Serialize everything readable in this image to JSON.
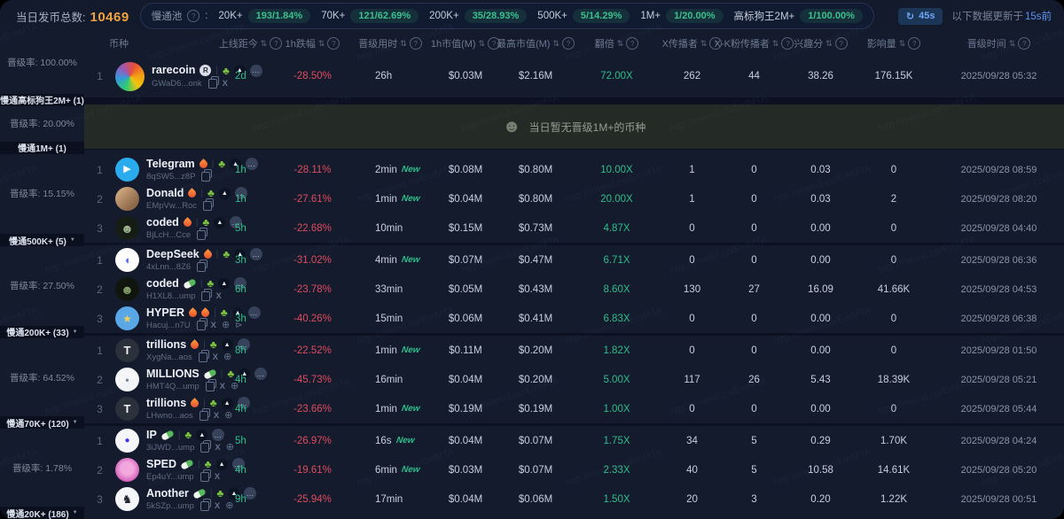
{
  "topbar": {
    "total_label": "当日发币总数:",
    "total_value": "10469",
    "pool_label": "慢通池",
    "pool_colon": ":",
    "pool_stats": [
      {
        "label": "20K+",
        "value": "193/1.84%"
      },
      {
        "label": "70K+",
        "value": "121/62.69%"
      },
      {
        "label": "200K+",
        "value": "35/28.93%"
      },
      {
        "label": "500K+",
        "value": "5/14.29%"
      },
      {
        "label": "1M+",
        "value": "1/20.00%"
      },
      {
        "label": "高标狗王2M+",
        "value": "1/100.00%"
      }
    ],
    "refresh_label": "45s",
    "update_prefix": "以下数据更新于",
    "update_time": "15s前"
  },
  "watermark": "http://memd.co/EmMTA",
  "icons": {
    "refresh": "↻",
    "sort": "⇅",
    "info": "?",
    "caret": "▼",
    "seedling": "♣",
    "warning-triangle": "▲",
    "more": "…",
    "x": "X",
    "globe": "⊕",
    "telegram": "⊳",
    "face": "☻"
  },
  "colors": {
    "green": "#2fbe8b",
    "red": "#e04b5e",
    "orange": "#efa23f",
    "blue": "#5d93f0"
  },
  "sidebar": {
    "rate_label": "晋级率:",
    "sections": [
      {
        "key": "2m",
        "rate": "100.00%",
        "band": "慢通高标狗王2M+",
        "count": "1",
        "caret": false
      },
      {
        "key": "1m",
        "rate": "20.00%",
        "band": "慢通1M+",
        "count": "1",
        "caret": false
      },
      {
        "key": "500k",
        "rate": "15.15%",
        "band": "慢通500K+",
        "count": "5",
        "caret": true
      },
      {
        "key": "200k",
        "rate": "27.50%",
        "band": "慢通200K+",
        "count": "33",
        "caret": true
      },
      {
        "key": "70k",
        "rate": "64.52%",
        "band": "慢通70K+",
        "count": "120",
        "caret": true
      },
      {
        "key": "20k",
        "rate": "1.78%",
        "band": "慢通20K+",
        "count": "186",
        "caret": true
      }
    ]
  },
  "table": {
    "new_label": "New",
    "headers": [
      {
        "key": "coin",
        "label": "币种",
        "sort": false,
        "info": false
      },
      {
        "key": "age",
        "label": "上线距今",
        "sort": true,
        "info": true
      },
      {
        "key": "change-1h",
        "label": "1h跌幅",
        "sort": true,
        "info": true
      },
      {
        "key": "promote-duration",
        "label": "晋级用时",
        "sort": true,
        "info": true
      },
      {
        "key": "mcap-1h",
        "label": "1h市值(M)",
        "sort": true,
        "info": true
      },
      {
        "key": "mcap-high",
        "label": "最高市值(M)",
        "sort": true,
        "info": true
      },
      {
        "key": "multiple",
        "label": "翻倍",
        "sort": true,
        "info": true
      },
      {
        "key": "x-spreaders",
        "label": "X传播者",
        "sort": true,
        "info": true
      },
      {
        "key": "xk-spreaders",
        "label": "X-K粉传播者",
        "sort": true,
        "info": true
      },
      {
        "key": "interest",
        "label": "兴趣分",
        "sort": true,
        "info": true
      },
      {
        "key": "influence",
        "label": "影响量",
        "sort": true,
        "info": true
      },
      {
        "key": "promote-time",
        "label": "晋级时间",
        "sort": true,
        "info": true
      }
    ],
    "sections": [
      {
        "key": "2m",
        "rows": [
          {
            "rank": "1",
            "name": "rarecoin",
            "badge": "reg",
            "name_flame": false,
            "avatar": {
              "bg": "conic-gradient(from 20deg, #e74c3c, #f39c12, #f1c40f, #2ecc71, #3498db, #9b59b6, #e74c3c)",
              "glyph": "",
              "fg": "#fff",
              "fs": 12
            },
            "address": "GWaD6...onk",
            "links": [
              "copy",
              "x"
            ],
            "age": "2d",
            "change": "-28.50%",
            "promote": "26h",
            "is_new": false,
            "mcap_1h": "$0.03M",
            "mcap_high": "$2.16M",
            "multiple": "72.00X",
            "x_spreaders": "262",
            "xk_spreaders": "44",
            "interest": "38.26",
            "influence": "176.15K",
            "time": "2025/09/28 05:32"
          }
        ]
      },
      {
        "key": "1m-empty",
        "empty": true,
        "text": "当日暂无晋级1M+的币种"
      },
      {
        "key": "500k",
        "rows": [
          {
            "rank": "1",
            "name": "Telegram",
            "badge": "flame",
            "name_flame": false,
            "avatar": {
              "bg": "#2aabee",
              "glyph": "▶",
              "fg": "#ffffff",
              "fs": 11
            },
            "address": "8qSW5...z8P",
            "links": [
              "copy"
            ],
            "age": "1h",
            "change": "-28.11%",
            "promote": "2min",
            "is_new": true,
            "mcap_1h": "$0.08M",
            "mcap_high": "$0.80M",
            "multiple": "10.00X",
            "x_spreaders": "1",
            "xk_spreaders": "0",
            "interest": "0.03",
            "influence": "0",
            "time": "2025/09/28 08:59"
          },
          {
            "rank": "2",
            "name": "Donald",
            "badge": "flame",
            "name_flame": false,
            "avatar": {
              "bg": "linear-gradient(135deg, #caa27a 20%, #8f6a4a 75%)",
              "glyph": "",
              "fg": "#fff",
              "fs": 11
            },
            "address": "EMpVw...Roc",
            "links": [
              "copy"
            ],
            "age": "1h",
            "change": "-27.61%",
            "promote": "1min",
            "is_new": true,
            "mcap_1h": "$0.04M",
            "mcap_high": "$0.80M",
            "multiple": "20.00X",
            "x_spreaders": "1",
            "xk_spreaders": "0",
            "interest": "0.03",
            "influence": "2",
            "time": "2025/09/28 08:20"
          },
          {
            "rank": "3",
            "name": "coded",
            "badge": "flame",
            "name_flame": false,
            "avatar": {
              "bg": "#161d14",
              "glyph": "☻",
              "fg": "#9fb48f",
              "fs": 14
            },
            "address": "BjLcH...Cce",
            "links": [
              "copy"
            ],
            "age": "5h",
            "change": "-22.68%",
            "promote": "10min",
            "is_new": false,
            "mcap_1h": "$0.15M",
            "mcap_high": "$0.73M",
            "multiple": "4.87X",
            "x_spreaders": "0",
            "xk_spreaders": "0",
            "interest": "0.00",
            "influence": "0",
            "time": "2025/09/28 04:40"
          }
        ]
      },
      {
        "key": "200k",
        "rows": [
          {
            "rank": "1",
            "name": "DeepSeek",
            "badge": "flame",
            "name_flame": false,
            "avatar": {
              "bg": "#ffffff",
              "glyph": "◖",
              "fg": "#4d6bfe",
              "fs": 13
            },
            "address": "4xLnn...8Z6",
            "links": [
              "copy"
            ],
            "age": "3h",
            "change": "-31.02%",
            "promote": "4min",
            "is_new": true,
            "mcap_1h": "$0.07M",
            "mcap_high": "$0.47M",
            "multiple": "6.71X",
            "x_spreaders": "0",
            "xk_spreaders": "0",
            "interest": "0.00",
            "influence": "0",
            "time": "2025/09/28 06:36"
          },
          {
            "rank": "2",
            "name": "coded",
            "badge": "pill",
            "name_flame": false,
            "avatar": {
              "bg": "#10160e",
              "glyph": "☻",
              "fg": "#87a06b",
              "fs": 14
            },
            "address": "H1XL8...ump",
            "links": [
              "copy",
              "x"
            ],
            "age": "6h",
            "change": "-23.78%",
            "promote": "33min",
            "is_new": false,
            "mcap_1h": "$0.05M",
            "mcap_high": "$0.43M",
            "multiple": "8.60X",
            "x_spreaders": "130",
            "xk_spreaders": "27",
            "interest": "16.09",
            "influence": "41.66K",
            "time": "2025/09/28 04:53"
          },
          {
            "rank": "3",
            "name": "HYPER",
            "badge": "flame",
            "name_flame": true,
            "avatar": {
              "bg": "#5aa7e8",
              "glyph": "★",
              "fg": "#f2cf5b",
              "fs": 12
            },
            "address": "Hacuj...n7U",
            "links": [
              "copy",
              "x",
              "globe",
              "tg"
            ],
            "age": "3h",
            "change": "-40.26%",
            "promote": "15min",
            "is_new": false,
            "mcap_1h": "$0.06M",
            "mcap_high": "$0.41M",
            "multiple": "6.83X",
            "x_spreaders": "0",
            "xk_spreaders": "0",
            "interest": "0.00",
            "influence": "0",
            "time": "2025/09/28 06:38"
          }
        ]
      },
      {
        "key": "70k",
        "rows": [
          {
            "rank": "1",
            "name": "trillions",
            "badge": "flame",
            "name_flame": false,
            "avatar": {
              "bg": "#2a313b",
              "glyph": "T",
              "fg": "#f0f3f7",
              "fs": 13
            },
            "address": "XygNa...aos",
            "links": [
              "copy",
              "x",
              "globe"
            ],
            "age": "8h",
            "change": "-22.52%",
            "promote": "1min",
            "is_new": true,
            "mcap_1h": "$0.11M",
            "mcap_high": "$0.20M",
            "multiple": "1.82X",
            "x_spreaders": "0",
            "xk_spreaders": "0",
            "interest": "0.00",
            "influence": "0",
            "time": "2025/09/28 01:50"
          },
          {
            "rank": "2",
            "name": "MILLIONS",
            "badge": "pill",
            "name_flame": false,
            "avatar": {
              "bg": "#f4f6f8",
              "glyph": "•",
              "fg": "#7c8594",
              "fs": 12
            },
            "address": "HMT4Q...ump",
            "links": [
              "copy",
              "x",
              "globe"
            ],
            "age": "4h",
            "change": "-45.73%",
            "promote": "16min",
            "is_new": false,
            "mcap_1h": "$0.04M",
            "mcap_high": "$0.20M",
            "multiple": "5.00X",
            "x_spreaders": "117",
            "xk_spreaders": "26",
            "interest": "5.43",
            "influence": "18.39K",
            "time": "2025/09/28 05:21"
          },
          {
            "rank": "3",
            "name": "trillions",
            "badge": "flame",
            "name_flame": false,
            "avatar": {
              "bg": "#2a313b",
              "glyph": "T",
              "fg": "#f0f3f7",
              "fs": 13
            },
            "address": "LHwno...aos",
            "links": [
              "copy",
              "x",
              "globe"
            ],
            "age": "4h",
            "change": "-23.66%",
            "promote": "1min",
            "is_new": true,
            "mcap_1h": "$0.19M",
            "mcap_high": "$0.19M",
            "multiple": "1.00X",
            "x_spreaders": "0",
            "xk_spreaders": "0",
            "interest": "0.00",
            "influence": "0",
            "time": "2025/09/28 05:44"
          }
        ]
      },
      {
        "key": "20k",
        "rows": [
          {
            "rank": "1",
            "name": "IP",
            "badge": "pill",
            "name_flame": false,
            "avatar": {
              "bg": "#f4f6f8",
              "glyph": "●",
              "fg": "#4433ee",
              "fs": 10
            },
            "address": "3iJWD...ump",
            "links": [
              "copy",
              "x",
              "globe"
            ],
            "age": "5h",
            "change": "-26.97%",
            "promote": "16s",
            "is_new": true,
            "mcap_1h": "$0.04M",
            "mcap_high": "$0.07M",
            "multiple": "1.75X",
            "x_spreaders": "34",
            "xk_spreaders": "5",
            "interest": "0.29",
            "influence": "1.70K",
            "time": "2025/09/28 04:24"
          },
          {
            "rank": "2",
            "name": "SPED",
            "badge": "pill",
            "name_flame": false,
            "avatar": {
              "bg": "radial-gradient(circle at 50% 45%, #f2a7de 35%, #d15ab5 75%)",
              "glyph": "",
              "fg": "#fff",
              "fs": 10
            },
            "address": "Ep4uY...ump",
            "links": [
              "copy",
              "x"
            ],
            "age": "4h",
            "change": "-19.61%",
            "promote": "6min",
            "is_new": true,
            "mcap_1h": "$0.03M",
            "mcap_high": "$0.07M",
            "multiple": "2.33X",
            "x_spreaders": "40",
            "xk_spreaders": "5",
            "interest": "10.58",
            "influence": "14.61K",
            "time": "2025/09/28 05:20"
          },
          {
            "rank": "3",
            "name": "Another",
            "badge": "pill",
            "name_flame": false,
            "avatar": {
              "bg": "#f4f6f8",
              "glyph": "♞",
              "fg": "#20242b",
              "fs": 13
            },
            "address": "5kSZp...ump",
            "links": [
              "copy",
              "x",
              "globe"
            ],
            "age": "9h",
            "change": "-25.94%",
            "promote": "17min",
            "is_new": false,
            "mcap_1h": "$0.04M",
            "mcap_high": "$0.06M",
            "multiple": "1.50X",
            "x_spreaders": "20",
            "xk_spreaders": "3",
            "interest": "0.20",
            "influence": "1.22K",
            "time": "2025/09/28 00:51"
          }
        ]
      }
    ]
  }
}
